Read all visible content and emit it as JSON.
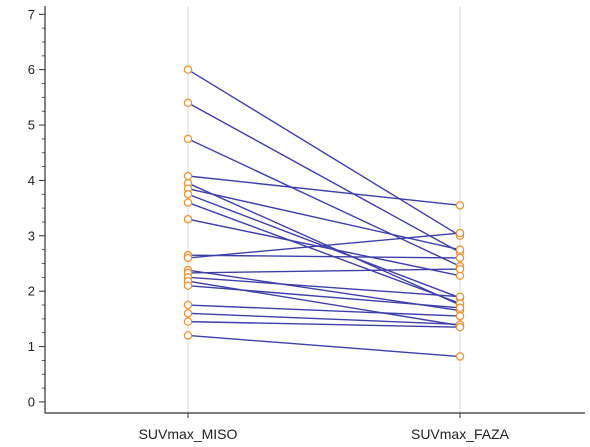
{
  "chart_data": {
    "type": "line",
    "subtype": "paired-dot-plot",
    "title": "",
    "xlabel": "",
    "ylabel": "",
    "categories": [
      "SUVmax_MISO",
      "SUVmax_FAZA"
    ],
    "ylim": [
      -0.2,
      7.15
    ],
    "yticks": [
      0,
      1,
      2,
      3,
      4,
      5,
      6,
      7
    ],
    "grid": {
      "vertical_at_categories": true,
      "horizontal": false
    },
    "legend": "none",
    "colors": {
      "line": "#3d3fa8",
      "marker_edge": "#e8933a",
      "marker_fill": "#ffffff",
      "axis": "#333333",
      "grid": "#d9d9d9"
    },
    "pairs": [
      [
        6.0,
        3.0
      ],
      [
        5.4,
        2.7
      ],
      [
        4.75,
        2.45
      ],
      [
        4.08,
        3.55
      ],
      [
        3.95,
        1.75
      ],
      [
        3.85,
        2.75
      ],
      [
        3.75,
        1.88
      ],
      [
        3.6,
        1.78
      ],
      [
        3.3,
        2.28
      ],
      [
        2.65,
        2.6
      ],
      [
        2.6,
        3.05
      ],
      [
        2.38,
        1.65
      ],
      [
        2.33,
        2.4
      ],
      [
        2.25,
        1.9
      ],
      [
        2.18,
        1.38
      ],
      [
        2.1,
        1.7
      ],
      [
        1.75,
        1.55
      ],
      [
        1.6,
        1.4
      ],
      [
        1.45,
        1.35
      ],
      [
        1.2,
        0.82
      ]
    ]
  }
}
